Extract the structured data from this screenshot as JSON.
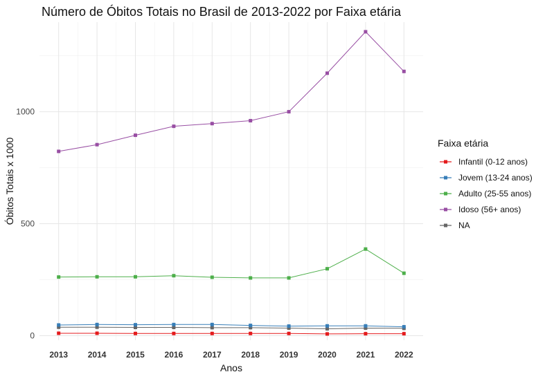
{
  "chart_data": {
    "type": "line",
    "title": "Número de Óbitos Totais no Brasil de 2013-2022 por Faixa etária",
    "xlabel": "Anos",
    "ylabel": "Óbitos Totais x 1000",
    "x": [
      2013,
      2014,
      2015,
      2016,
      2017,
      2018,
      2019,
      2020,
      2021,
      2022
    ],
    "x_tick_labels": [
      "2013",
      "2014",
      "2015",
      "2016",
      "2017",
      "2018",
      "2019",
      "2020",
      "2021",
      "2022"
    ],
    "y_ticks": [
      0,
      500,
      1000
    ],
    "y_tick_labels": [
      "0",
      "500",
      "1000"
    ],
    "ylim": [
      -20,
      1400
    ],
    "grid": true,
    "legend": {
      "title": "Faixa etária",
      "position": "right"
    },
    "series": [
      {
        "name": "Infantil (0-12 anos)",
        "color": "#e41a1c",
        "values": [
          11,
          11,
          10,
          10,
          10,
          10,
          10,
          8,
          9,
          9
        ]
      },
      {
        "name": "Jovem (13-24 anos)",
        "color": "#377eb8",
        "values": [
          48,
          50,
          49,
          50,
          50,
          46,
          43,
          44,
          44,
          40
        ]
      },
      {
        "name": "Adulto (25-55 anos)",
        "color": "#4daf4a",
        "values": [
          262,
          263,
          263,
          268,
          261,
          258,
          258,
          299,
          387,
          279
        ]
      },
      {
        "name": "Idoso (56+ anos)",
        "color": "#984ea3",
        "values": [
          823,
          853,
          895,
          935,
          947,
          960,
          1000,
          1172,
          1357,
          1180
        ]
      },
      {
        "name": "NA",
        "color": "#666666",
        "values": [
          38,
          38,
          37,
          37,
          36,
          36,
          34,
          31,
          34,
          33
        ]
      }
    ]
  }
}
